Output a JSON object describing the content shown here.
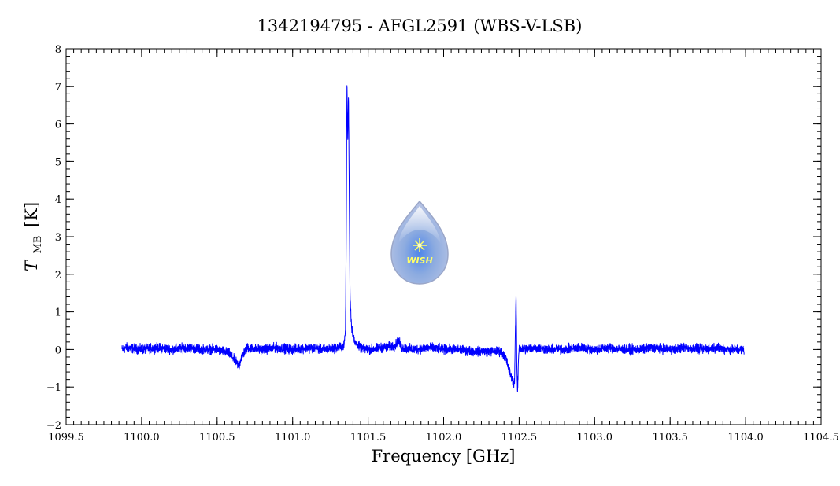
{
  "chart_data": {
    "type": "line",
    "title": "1342194795 - AFGL2591 (WBS-V-LSB)",
    "xlabel": "Frequency [GHz]",
    "ylabel_main": "T",
    "ylabel_sub": "MB",
    "ylabel_unit": "[K]",
    "xlim": [
      1099.5,
      1104.5
    ],
    "ylim": [
      -2,
      8
    ],
    "x_ticks": [
      1099.5,
      1100.0,
      1100.5,
      1101.0,
      1101.5,
      1102.0,
      1102.5,
      1103.0,
      1103.5,
      1104.0,
      1104.5
    ],
    "x_tick_labels": [
      "1099.5",
      "1100.0",
      "1100.5",
      "1101.0",
      "1101.5",
      "1102.0",
      "1102.5",
      "1103.0",
      "1103.5",
      "1104.0",
      "1104.5"
    ],
    "y_ticks": [
      -2,
      -1,
      0,
      1,
      2,
      3,
      4,
      5,
      6,
      7,
      8
    ],
    "y_tick_labels": [
      "−2",
      "−1",
      "0",
      "1",
      "2",
      "3",
      "4",
      "5",
      "6",
      "7",
      "8"
    ],
    "grid": false,
    "series": [
      {
        "color": "#0000ff",
        "x": [
          1099.87,
          1099.9,
          1100.0,
          1100.1,
          1100.2,
          1100.3,
          1100.4,
          1100.5,
          1100.58,
          1100.62,
          1100.645,
          1100.66,
          1100.7,
          1100.8,
          1100.9,
          1101.0,
          1101.1,
          1101.2,
          1101.3,
          1101.34,
          1101.35,
          1101.355,
          1101.36,
          1101.365,
          1101.37,
          1101.375,
          1101.38,
          1101.39,
          1101.41,
          1101.45,
          1101.5,
          1101.6,
          1101.68,
          1101.7,
          1101.72,
          1101.8,
          1101.9,
          1102.0,
          1102.1,
          1102.2,
          1102.3,
          1102.38,
          1102.41,
          1102.43,
          1102.45,
          1102.465,
          1102.47,
          1102.475,
          1102.48,
          1102.485,
          1102.49,
          1102.495,
          1102.5,
          1102.52,
          1102.6,
          1102.7,
          1102.8,
          1102.9,
          1103.0,
          1103.1,
          1103.2,
          1103.3,
          1103.4,
          1103.5,
          1103.6,
          1103.7,
          1103.8,
          1103.9,
          1103.99
        ],
        "y": [
          0.0,
          0.05,
          0.0,
          0.05,
          0.0,
          0.05,
          0.0,
          0.0,
          -0.1,
          -0.3,
          -0.45,
          -0.2,
          0.05,
          0.0,
          0.05,
          0.0,
          0.05,
          0.0,
          0.05,
          0.1,
          0.5,
          3.0,
          7.2,
          5.5,
          6.8,
          4.2,
          1.5,
          0.6,
          0.2,
          0.05,
          0.0,
          0.05,
          0.1,
          0.25,
          0.05,
          0.0,
          0.05,
          0.0,
          0.0,
          -0.05,
          -0.05,
          -0.05,
          -0.2,
          -0.5,
          -0.75,
          -0.9,
          -0.8,
          0.5,
          1.5,
          -0.5,
          -1.2,
          -0.3,
          0.05,
          0.0,
          0.05,
          0.0,
          0.0,
          0.05,
          0.0,
          0.05,
          0.0,
          0.0,
          0.05,
          0.0,
          0.05,
          0.0,
          0.05,
          0.0,
          0.0
        ]
      }
    ]
  },
  "logo": {
    "label": "WISH"
  }
}
